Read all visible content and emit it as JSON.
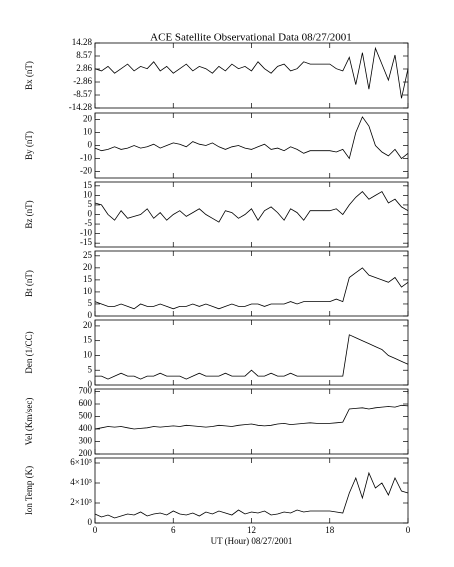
{
  "chart_data": [
    {
      "type": "line",
      "title": "ACE Satellite Observational Data   08/27/2001",
      "ylabel": "Bx (nT)",
      "color": "#000000",
      "x": [
        0,
        0.5,
        1,
        1.5,
        2,
        2.5,
        3,
        3.5,
        4,
        4.5,
        5,
        5.5,
        6,
        6.5,
        7,
        7.5,
        8,
        8.5,
        9,
        9.5,
        10,
        10.5,
        11,
        11.5,
        12,
        12.5,
        13,
        13.5,
        14,
        14.5,
        15,
        15.5,
        16,
        16.5,
        17,
        17.5,
        18,
        18.5,
        19,
        19.5,
        20,
        20.5,
        21,
        21.5,
        22,
        22.5,
        23,
        23.5,
        24
      ],
      "values": [
        3,
        2,
        4,
        1,
        3,
        5,
        2,
        4,
        3,
        6,
        2,
        4,
        1,
        3,
        5,
        2,
        4,
        3,
        1,
        4,
        2,
        5,
        3,
        4,
        2,
        6,
        3,
        1,
        4,
        5,
        2,
        3,
        6,
        5,
        5,
        5,
        5,
        3,
        2,
        8,
        -4,
        10,
        -6,
        12,
        5,
        -2,
        9,
        -10,
        3
      ],
      "ylim": [
        -14.28,
        14.28
      ],
      "yticks": [
        14.28,
        8.57,
        2.86,
        -2.86,
        -8.57,
        -14.28
      ]
    },
    {
      "type": "line",
      "ylabel": "By (nT)",
      "color": "#000000",
      "x": [
        0,
        0.5,
        1,
        1.5,
        2,
        2.5,
        3,
        3.5,
        4,
        4.5,
        5,
        5.5,
        6,
        6.5,
        7,
        7.5,
        8,
        8.5,
        9,
        9.5,
        10,
        10.5,
        11,
        11.5,
        12,
        12.5,
        13,
        13.5,
        14,
        14.5,
        15,
        15.5,
        16,
        16.5,
        17,
        17.5,
        18,
        18.5,
        19,
        19.5,
        20,
        20.5,
        21,
        21.5,
        22,
        22.5,
        23,
        23.5,
        24
      ],
      "values": [
        -2,
        -4,
        -3,
        -1,
        -3,
        -2,
        0,
        -2,
        -1,
        1,
        -2,
        0,
        2,
        1,
        -1,
        3,
        1,
        0,
        2,
        -1,
        -3,
        -1,
        0,
        -2,
        -3,
        -1,
        1,
        -3,
        -2,
        -4,
        -1,
        -3,
        -6,
        -4,
        -4,
        -4,
        -4,
        -5,
        -3,
        -10,
        10,
        22,
        15,
        0,
        -5,
        -8,
        -3,
        -10,
        -6
      ],
      "ylim": [
        -25,
        25
      ],
      "yticks": [
        20,
        10,
        0,
        -10,
        -20
      ]
    },
    {
      "type": "line",
      "ylabel": "Bz (nT)",
      "color": "#000000",
      "x": [
        0,
        0.5,
        1,
        1.5,
        2,
        2.5,
        3,
        3.5,
        4,
        4.5,
        5,
        5.5,
        6,
        6.5,
        7,
        7.5,
        8,
        8.5,
        9,
        9.5,
        10,
        10.5,
        11,
        11.5,
        12,
        12.5,
        13,
        13.5,
        14,
        14.5,
        15,
        15.5,
        16,
        16.5,
        17,
        17.5,
        18,
        18.5,
        19,
        19.5,
        20,
        20.5,
        21,
        21.5,
        22,
        22.5,
        23,
        23.5,
        24
      ],
      "values": [
        6,
        5,
        0,
        -3,
        2,
        -2,
        -1,
        0,
        3,
        -2,
        1,
        -3,
        0,
        2,
        -1,
        1,
        3,
        0,
        -2,
        -4,
        2,
        1,
        -2,
        0,
        3,
        -3,
        2,
        4,
        1,
        -3,
        3,
        1,
        -3,
        2,
        2,
        2,
        2,
        3,
        0,
        5,
        9,
        12,
        8,
        10,
        12,
        6,
        8,
        4,
        2
      ],
      "ylim": [
        -17,
        17
      ],
      "yticks": [
        15,
        10,
        5,
        0,
        -5,
        -10,
        -15
      ]
    },
    {
      "type": "line",
      "ylabel": "Bt (nT)",
      "color": "#000000",
      "x": [
        0,
        0.5,
        1,
        1.5,
        2,
        2.5,
        3,
        3.5,
        4,
        4.5,
        5,
        5.5,
        6,
        6.5,
        7,
        7.5,
        8,
        8.5,
        9,
        9.5,
        10,
        10.5,
        11,
        11.5,
        12,
        12.5,
        13,
        13.5,
        14,
        14.5,
        15,
        15.5,
        16,
        16.5,
        17,
        17.5,
        18,
        18.5,
        19,
        19.5,
        20,
        20.5,
        21,
        21.5,
        22,
        22.5,
        23,
        23.5,
        24
      ],
      "values": [
        6,
        5,
        4,
        4,
        5,
        4,
        3,
        5,
        4,
        4,
        5,
        4,
        3,
        4,
        4,
        5,
        4,
        5,
        4,
        3,
        4,
        5,
        4,
        4,
        5,
        5,
        4,
        5,
        5,
        5,
        6,
        5,
        6,
        6,
        6,
        6,
        6,
        7,
        6,
        16,
        18,
        20,
        17,
        16,
        15,
        14,
        16,
        12,
        14
      ],
      "ylim": [
        0,
        27
      ],
      "yticks": [
        0,
        5,
        10,
        15,
        20,
        25
      ]
    },
    {
      "type": "line",
      "ylabel": "Den (1/CC)",
      "color": "#000000",
      "x": [
        0,
        0.5,
        1,
        1.5,
        2,
        2.5,
        3,
        3.5,
        4,
        4.5,
        5,
        5.5,
        6,
        6.5,
        7,
        7.5,
        8,
        8.5,
        9,
        9.5,
        10,
        10.5,
        11,
        11.5,
        12,
        12.5,
        13,
        13.5,
        14,
        14.5,
        15,
        15.5,
        16,
        16.5,
        17,
        17.5,
        18,
        18.5,
        19,
        19.5,
        20,
        20.5,
        21,
        21.5,
        22,
        22.5,
        23,
        23.5,
        24
      ],
      "values": [
        3,
        3,
        2,
        3,
        4,
        3,
        3,
        2,
        3,
        3,
        4,
        3,
        3,
        3,
        2,
        3,
        4,
        3,
        3,
        3,
        4,
        3,
        3,
        3,
        5,
        3,
        3,
        4,
        3,
        3,
        4,
        3,
        3,
        3,
        3,
        3,
        3,
        3,
        3,
        17,
        16,
        15,
        14,
        13,
        12,
        10,
        9,
        8,
        7
      ],
      "ylim": [
        0,
        22
      ],
      "yticks": [
        0,
        5,
        10,
        15,
        20
      ]
    },
    {
      "type": "line",
      "ylabel": "Vel (Km/sec)",
      "color": "#000000",
      "x": [
        0,
        0.5,
        1,
        1.5,
        2,
        2.5,
        3,
        3.5,
        4,
        4.5,
        5,
        5.5,
        6,
        6.5,
        7,
        7.5,
        8,
        8.5,
        9,
        9.5,
        10,
        10.5,
        11,
        11.5,
        12,
        12.5,
        13,
        13.5,
        14,
        14.5,
        15,
        15.5,
        16,
        16.5,
        17,
        17.5,
        18,
        18.5,
        19,
        19.5,
        20,
        20.5,
        21,
        21.5,
        22,
        22.5,
        23,
        23.5,
        24
      ],
      "values": [
        400,
        410,
        420,
        415,
        420,
        410,
        400,
        405,
        410,
        420,
        415,
        420,
        425,
        420,
        430,
        425,
        420,
        415,
        420,
        430,
        425,
        420,
        430,
        435,
        440,
        430,
        425,
        430,
        440,
        445,
        435,
        440,
        445,
        450,
        445,
        445,
        445,
        450,
        455,
        560,
        565,
        570,
        560,
        570,
        575,
        580,
        575,
        590,
        585
      ],
      "ylim": [
        200,
        720
      ],
      "yticks": [
        200,
        300,
        400,
        500,
        600,
        700
      ]
    },
    {
      "type": "line",
      "ylabel": "Ion Temp (K)",
      "xlabel": "UT (Hour)   08/27/2001",
      "color": "#000000",
      "x": [
        0,
        0.5,
        1,
        1.5,
        2,
        2.5,
        3,
        3.5,
        4,
        4.5,
        5,
        5.5,
        6,
        6.5,
        7,
        7.5,
        8,
        8.5,
        9,
        9.5,
        10,
        10.5,
        11,
        11.5,
        12,
        12.5,
        13,
        13.5,
        14,
        14.5,
        15,
        15.5,
        16,
        16.5,
        17,
        17.5,
        18,
        18.5,
        19,
        19.5,
        20,
        20.5,
        21,
        21.5,
        22,
        22.5,
        23,
        23.5,
        24
      ],
      "values": [
        90000,
        60000,
        80000,
        50000,
        70000,
        90000,
        80000,
        110000,
        70000,
        90000,
        100000,
        80000,
        120000,
        90000,
        80000,
        100000,
        70000,
        110000,
        90000,
        120000,
        100000,
        80000,
        130000,
        90000,
        110000,
        100000,
        120000,
        80000,
        90000,
        110000,
        100000,
        130000,
        110000,
        120000,
        120000,
        120000,
        120000,
        110000,
        100000,
        300000,
        450000,
        250000,
        500000,
        350000,
        400000,
        280000,
        450000,
        320000,
        300000
      ],
      "ylim": [
        0,
        650000
      ],
      "yticks": [
        0,
        {
          "value": 200000,
          "label": "2×10⁵"
        },
        {
          "value": 400000,
          "label": "4×10⁵"
        },
        {
          "value": 600000,
          "label": "6×10⁵"
        }
      ],
      "xlim": [
        0,
        24
      ],
      "xticks": [
        0,
        6,
        12,
        18,
        {
          "value": 24,
          "label": "0"
        }
      ]
    }
  ]
}
